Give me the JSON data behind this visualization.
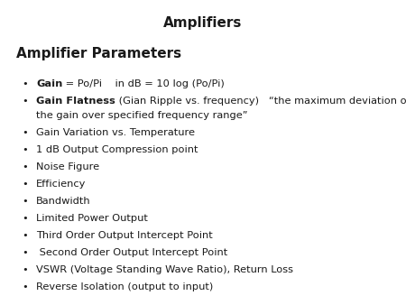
{
  "title": "Amplifiers",
  "subtitle": "Amplifier Parameters",
  "background_color": "#ffffff",
  "title_fontsize": 11,
  "subtitle_fontsize": 11,
  "body_fontsize": 8.2,
  "title_color": "#1a1a1a",
  "text_color": "#1a1a1a",
  "bullet_char": "•",
  "bullet_items": [
    {
      "bold_part": "Gain",
      "normal_part": " = Po/Pi    in dB = 10 log (Po/Pi)",
      "extra_line": null
    },
    {
      "bold_part": "Gain Flatness",
      "normal_part": " (Gian Ripple vs. frequency)   “the maximum deviation of the gain over specified frequency range”",
      "extra_line": "the gain over specified frequency range”"
    },
    {
      "bold_part": "",
      "normal_part": "Gain Variation vs. Temperature",
      "extra_line": null
    },
    {
      "bold_part": "",
      "normal_part": "1 dB Output Compression point",
      "extra_line": null
    },
    {
      "bold_part": "",
      "normal_part": "Noise Figure",
      "extra_line": null
    },
    {
      "bold_part": "",
      "normal_part": "Efficiency",
      "extra_line": null
    },
    {
      "bold_part": "",
      "normal_part": "Bandwidth",
      "extra_line": null
    },
    {
      "bold_part": "",
      "normal_part": "Limited Power Output",
      "extra_line": null
    },
    {
      "bold_part": "",
      "normal_part": "Third Order Output Intercept Point",
      "extra_line": null
    },
    {
      "bold_part": "",
      "normal_part": " Second Order Output Intercept Point",
      "extra_line": null
    },
    {
      "bold_part": "",
      "normal_part": "VSWR (Voltage Standing Wave Ratio), Return Loss",
      "extra_line": null
    },
    {
      "bold_part": "",
      "normal_part": "Reverse Isolation (output to input)",
      "extra_line": null
    }
  ]
}
